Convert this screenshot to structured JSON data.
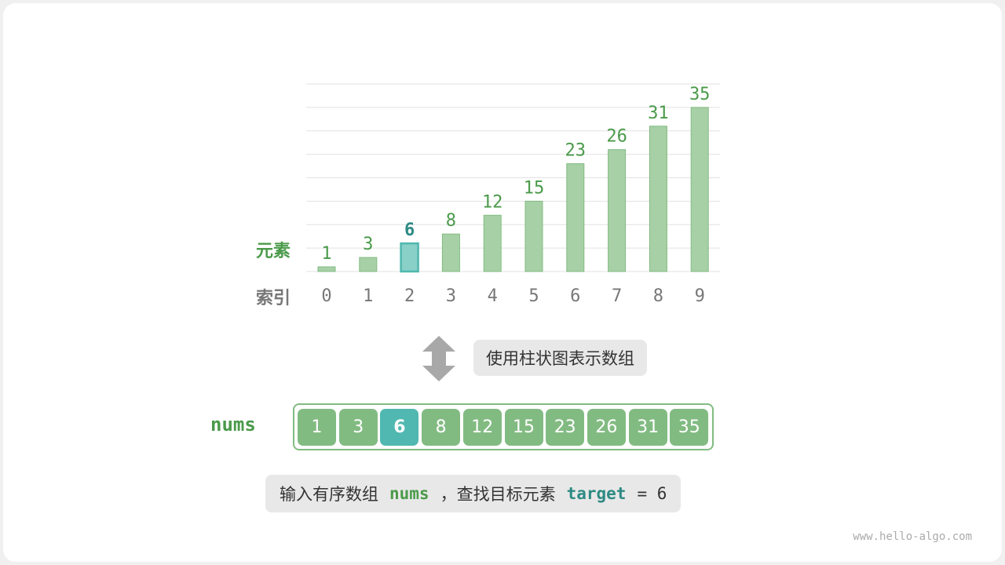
{
  "chart_data": {
    "type": "bar",
    "categories": [
      "0",
      "1",
      "2",
      "3",
      "4",
      "5",
      "6",
      "7",
      "8",
      "9"
    ],
    "values": [
      1,
      3,
      6,
      8,
      12,
      15,
      23,
      26,
      31,
      35
    ],
    "highlight_index": 2,
    "ylim": [
      0,
      40
    ],
    "grid": true,
    "value_row_label": "元素",
    "index_row_label": "索引"
  },
  "colors": {
    "bar": "#a7d0a7",
    "bar_border": "#82bb82",
    "highlight": "#88d0c8",
    "highlight_border": "#50b8b0",
    "label_green": "#4a9a4a",
    "label_teal": "#2e8a84",
    "index_gray": "#777777"
  },
  "caption_mid": "使用柱状图表示数组",
  "array": {
    "name": "nums",
    "values": [
      "1",
      "3",
      "6",
      "8",
      "12",
      "15",
      "23",
      "26",
      "31",
      "35"
    ],
    "highlight_index": 2
  },
  "caption_bottom": {
    "prefix": "输入有序数组",
    "nums": "nums",
    "middle": "，查找目标元素",
    "target": "target",
    "suffix": "= 6"
  },
  "icons": {
    "arrow": "double-arrow-vertical-icon"
  },
  "footer": "www.hello-algo.com"
}
